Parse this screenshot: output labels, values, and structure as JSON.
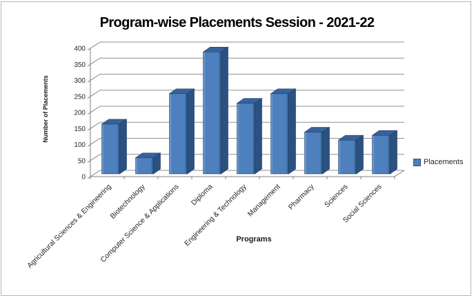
{
  "window": {
    "background": "#ffffff",
    "border_color": "#b5b5b5"
  },
  "chart_data": {
    "type": "bar",
    "style": "3d-column",
    "title": "Program-wise Placements Session - 2021-22",
    "xlabel": "Programs",
    "ylabel": "Number of Placements",
    "categories": [
      "Agricultural Sciences & Engineering",
      "Biotechnology",
      "Computer Science & Applications",
      "Diploma",
      "Engineering & Technology",
      "Management",
      "Pharmacy",
      "Sciences",
      "Social Sciences"
    ],
    "series": [
      {
        "name": "Placements",
        "values": [
          155,
          50,
          250,
          380,
          220,
          250,
          130,
          105,
          120
        ]
      }
    ],
    "ylim": [
      0,
      400
    ],
    "yticks": [
      0,
      50,
      100,
      150,
      200,
      250,
      300,
      350,
      400
    ],
    "grid": true,
    "legend_position": "right",
    "category_label_rotation_deg": -45,
    "colors": {
      "bar_front": "#4d80bc",
      "bar_front_highlight": "#7ca2d2",
      "bar_top": "#37629a",
      "bar_side": "#2b5180",
      "bar_outline": "#1e3f68",
      "gridline": "#8f8f8f",
      "axis": "#7f7f7f",
      "tick_text": "#262626"
    }
  }
}
